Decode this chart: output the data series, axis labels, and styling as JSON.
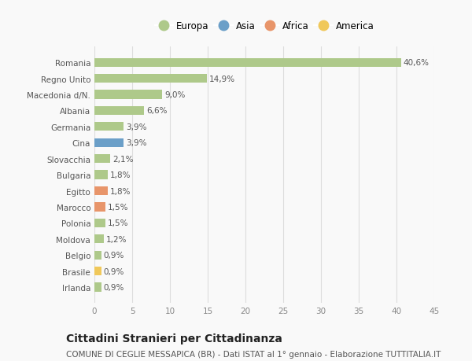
{
  "countries": [
    "Romania",
    "Regno Unito",
    "Macedonia d/N.",
    "Albania",
    "Germania",
    "Cina",
    "Slovacchia",
    "Bulgaria",
    "Egitto",
    "Marocco",
    "Polonia",
    "Moldova",
    "Belgio",
    "Brasile",
    "Irlanda"
  ],
  "values": [
    40.6,
    14.9,
    9.0,
    6.6,
    3.9,
    3.9,
    2.1,
    1.8,
    1.8,
    1.5,
    1.5,
    1.2,
    0.9,
    0.9,
    0.9
  ],
  "labels": [
    "40,6%",
    "14,9%",
    "9,0%",
    "6,6%",
    "3,9%",
    "3,9%",
    "2,1%",
    "1,8%",
    "1,8%",
    "1,5%",
    "1,5%",
    "1,2%",
    "0,9%",
    "0,9%",
    "0,9%"
  ],
  "continents": [
    "Europa",
    "Europa",
    "Europa",
    "Europa",
    "Europa",
    "Asia",
    "Europa",
    "Europa",
    "Africa",
    "Africa",
    "Europa",
    "Europa",
    "Europa",
    "America",
    "Europa"
  ],
  "continent_colors": {
    "Europa": "#aec98a",
    "Asia": "#6b9fc8",
    "Africa": "#e8956a",
    "America": "#f0c85a"
  },
  "legend_order": [
    "Europa",
    "Asia",
    "Africa",
    "America"
  ],
  "xlim": [
    0,
    45
  ],
  "xticks": [
    0,
    5,
    10,
    15,
    20,
    25,
    30,
    35,
    40,
    45
  ],
  "title": "Cittadini Stranieri per Cittadinanza",
  "subtitle": "COMUNE DI CEGLIE MESSAPICA (BR) - Dati ISTAT al 1° gennaio - Elaborazione TUTTITALIA.IT",
  "background_color": "#f9f9f9",
  "grid_color": "#dddddd",
  "bar_height": 0.55,
  "label_fontsize": 7.5,
  "tick_fontsize": 7.5,
  "title_fontsize": 10,
  "subtitle_fontsize": 7.5
}
